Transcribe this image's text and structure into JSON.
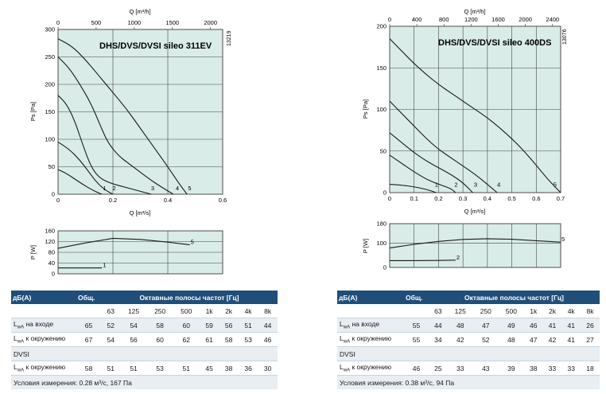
{
  "chart_data": [
    {
      "type": "line",
      "title": "DHS/DVS/DVSI sileo 311EV",
      "code": "13219",
      "xlabel": "Q [m³/s]",
      "x2label": "Q [m³/h]",
      "ylabel": "Ps [Pa]",
      "xlim": [
        0,
        0.6
      ],
      "ylim": [
        0,
        300
      ],
      "xticks": [
        "0",
        "0.2",
        "0.4",
        "0.6"
      ],
      "x2ticks": [
        "0",
        "500",
        "1000",
        "1500",
        "2000"
      ],
      "yticks": [
        "0",
        "50",
        "100",
        "150",
        "200",
        "250",
        "300"
      ],
      "grid": true,
      "series": [
        {
          "name": "1",
          "points": [
            [
              0,
              45
            ],
            [
              0.03,
              38
            ],
            [
              0.06,
              28
            ],
            [
              0.09,
              18
            ],
            [
              0.12,
              9
            ],
            [
              0.145,
              3
            ],
            [
              0.16,
              0
            ]
          ]
        },
        {
          "name": "2",
          "points": [
            [
              0,
              95
            ],
            [
              0.04,
              82
            ],
            [
              0.08,
              62
            ],
            [
              0.11,
              42
            ],
            [
              0.14,
              22
            ],
            [
              0.17,
              8
            ],
            [
              0.2,
              0
            ]
          ]
        },
        {
          "name": "3",
          "points": [
            [
              0,
              180
            ],
            [
              0.03,
              165
            ],
            [
              0.06,
              135
            ],
            [
              0.09,
              90
            ],
            [
              0.12,
              50
            ],
            [
              0.15,
              30
            ],
            [
              0.19,
              20
            ],
            [
              0.25,
              12
            ],
            [
              0.28,
              8
            ],
            [
              0.34,
              0
            ]
          ]
        },
        {
          "name": "4",
          "points": [
            [
              0,
              250
            ],
            [
              0.04,
              230
            ],
            [
              0.08,
              200
            ],
            [
              0.12,
              165
            ],
            [
              0.15,
              130
            ],
            [
              0.18,
              95
            ],
            [
              0.22,
              70
            ],
            [
              0.26,
              55
            ],
            [
              0.3,
              40
            ],
            [
              0.34,
              25
            ],
            [
              0.38,
              12
            ],
            [
              0.42,
              0
            ]
          ]
        },
        {
          "name": "5",
          "points": [
            [
              0,
              283
            ],
            [
              0.05,
              270
            ],
            [
              0.1,
              245
            ],
            [
              0.15,
              215
            ],
            [
              0.2,
              185
            ],
            [
              0.25,
              155
            ],
            [
              0.3,
              120
            ],
            [
              0.35,
              85
            ],
            [
              0.4,
              50
            ],
            [
              0.44,
              20
            ],
            [
              0.47,
              0
            ]
          ]
        }
      ],
      "power_chart": {
        "ylabel": "P [W]",
        "ylim": [
          0,
          160
        ],
        "yticks": [
          "0",
          "40",
          "80",
          "120",
          "160"
        ],
        "series": [
          {
            "name": "5",
            "points": [
              [
                0,
                95
              ],
              [
                0.1,
                115
              ],
              [
                0.2,
                132
              ],
              [
                0.3,
                128
              ],
              [
                0.4,
                118
              ],
              [
                0.48,
                108
              ]
            ]
          },
          {
            "name": "1",
            "points": [
              [
                0,
                22
              ],
              [
                0.02,
                22
              ],
              [
                0.16,
                22
              ]
            ]
          }
        ]
      }
    },
    {
      "type": "line",
      "title": "DHS/DVS/DVSI sileo 400DS",
      "code": "13076",
      "xlabel": "Q [m³/s]",
      "x2label": "Q [m³/h]",
      "ylabel": "Ps [Pa]",
      "xlim": [
        0,
        0.7
      ],
      "ylim": [
        0,
        200
      ],
      "xticks": [
        "0",
        "0.1",
        "0.2",
        "0.3",
        "0.4",
        "0.5",
        "0.6",
        "0.7"
      ],
      "x2ticks": [
        "0",
        "400",
        "800",
        "1200",
        "1600",
        "2000",
        "2400"
      ],
      "yticks": [
        "0",
        "50",
        "100",
        "150",
        "200"
      ],
      "grid": true,
      "series": [
        {
          "name": "1",
          "points": [
            [
              0,
              10
            ],
            [
              0.05,
              9
            ],
            [
              0.1,
              7
            ],
            [
              0.15,
              4
            ],
            [
              0.19,
              0
            ]
          ]
        },
        {
          "name": "2",
          "points": [
            [
              0,
              45
            ],
            [
              0.05,
              35
            ],
            [
              0.1,
              25
            ],
            [
              0.15,
              16
            ],
            [
              0.2,
              10
            ],
            [
              0.25,
              5
            ],
            [
              0.27,
              0
            ]
          ]
        },
        {
          "name": "3",
          "points": [
            [
              0,
              72
            ],
            [
              0.05,
              60
            ],
            [
              0.1,
              48
            ],
            [
              0.15,
              38
            ],
            [
              0.2,
              30
            ],
            [
              0.25,
              22
            ],
            [
              0.3,
              12
            ],
            [
              0.34,
              0
            ]
          ]
        },
        {
          "name": "4",
          "points": [
            [
              0,
              110
            ],
            [
              0.05,
              95
            ],
            [
              0.1,
              80
            ],
            [
              0.15,
              65
            ],
            [
              0.2,
              52
            ],
            [
              0.25,
              42
            ],
            [
              0.3,
              32
            ],
            [
              0.35,
              22
            ],
            [
              0.4,
              10
            ],
            [
              0.44,
              0
            ]
          ]
        },
        {
          "name": "5",
          "points": [
            [
              0,
              185
            ],
            [
              0.05,
              170
            ],
            [
              0.1,
              155
            ],
            [
              0.15,
              142
            ],
            [
              0.2,
              130
            ],
            [
              0.25,
              120
            ],
            [
              0.3,
              110
            ],
            [
              0.35,
              100
            ],
            [
              0.4,
              90
            ],
            [
              0.45,
              78
            ],
            [
              0.5,
              65
            ],
            [
              0.55,
              50
            ],
            [
              0.6,
              33
            ],
            [
              0.65,
              15
            ],
            [
              0.7,
              0
            ]
          ]
        }
      ],
      "power_chart": {
        "ylabel": "P [W]",
        "ylim": [
          0,
          180
        ],
        "yticks": [
          "0",
          "100",
          "180"
        ],
        "series": [
          {
            "name": "5",
            "points": [
              [
                0,
                80
              ],
              [
                0.1,
                95
              ],
              [
                0.2,
                107
              ],
              [
                0.3,
                115
              ],
              [
                0.4,
                118
              ],
              [
                0.5,
                116
              ],
              [
                0.6,
                110
              ],
              [
                0.7,
                104
              ]
            ]
          },
          {
            "name": "2",
            "points": [
              [
                0,
                28
              ],
              [
                0.1,
                28
              ],
              [
                0.2,
                29
              ],
              [
                0.27,
                30
              ]
            ]
          }
        ]
      }
    }
  ],
  "tables": [
    {
      "header": {
        "col0": "дБ(A)",
        "col1": "Общ.",
        "col2": "Октавные полосы частот [Гц]"
      },
      "bands": [
        "63",
        "125",
        "250",
        "500",
        "1k",
        "2k",
        "4k",
        "8k"
      ],
      "rows": [
        {
          "label": "L",
          "sub": "wA",
          "rest": " на входе",
          "total": "65",
          "vals": [
            "52",
            "54",
            "58",
            "60",
            "59",
            "56",
            "51",
            "44"
          ]
        },
        {
          "label": "L",
          "sub": "wA",
          "rest": " к окружению",
          "total": "67",
          "vals": [
            "54",
            "56",
            "60",
            "62",
            "61",
            "58",
            "53",
            "46"
          ]
        },
        {
          "label": "DVSI",
          "sub": "",
          "rest": "",
          "total": "",
          "vals": [
            "",
            "",
            "",
            "",
            "",
            "",
            "",
            ""
          ]
        },
        {
          "label": "L",
          "sub": "wA",
          "rest": " к окружению",
          "total": "58",
          "vals": [
            "51",
            "51",
            "53",
            "51",
            "45",
            "38",
            "36",
            "30"
          ]
        }
      ],
      "footer": "Условия измерения: 0.28 м³/с, 167 Па"
    },
    {
      "header": {
        "col0": "дБ(A)",
        "col1": "Общ.",
        "col2": "Октавные полосы частот [Гц]"
      },
      "bands": [
        "63",
        "125",
        "250",
        "500",
        "1k",
        "2k",
        "4k",
        "8k"
      ],
      "rows": [
        {
          "label": "L",
          "sub": "wA",
          "rest": " на входе",
          "total": "55",
          "vals": [
            "44",
            "48",
            "47",
            "49",
            "46",
            "41",
            "41",
            "26"
          ]
        },
        {
          "label": "L",
          "sub": "wA",
          "rest": " к окружению",
          "total": "55",
          "vals": [
            "34",
            "42",
            "52",
            "48",
            "47",
            "42",
            "41",
            "27"
          ]
        },
        {
          "label": "DVSI",
          "sub": "",
          "rest": "",
          "total": "",
          "vals": [
            "",
            "",
            "",
            "",
            "",
            "",
            "",
            ""
          ]
        },
        {
          "label": "L",
          "sub": "wA",
          "rest": " к окружению",
          "total": "46",
          "vals": [
            "25",
            "33",
            "43",
            "39",
            "38",
            "33",
            "33",
            "18"
          ]
        }
      ],
      "footer": "Условия измерения: 0.38 м³/с, 94 Па"
    }
  ],
  "colors": {
    "plot_bg": "#d9ece8",
    "table_header": "#1f4e79",
    "curve": "#1a1a1a"
  }
}
